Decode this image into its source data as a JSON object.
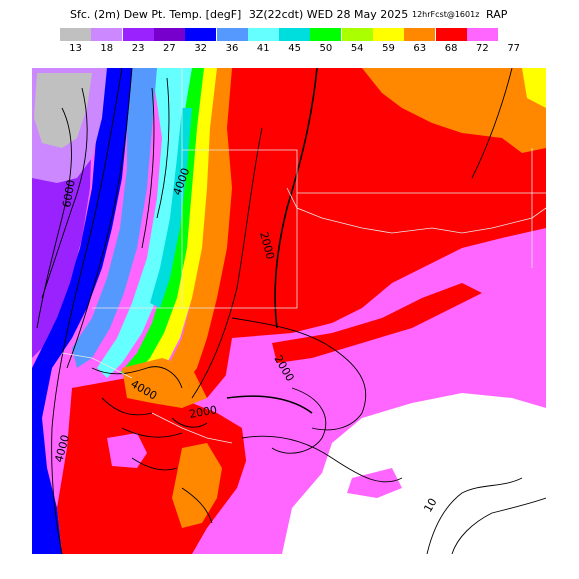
{
  "header": {
    "product": "Sfc. (2m) Dew Pt. Temp. [degF]",
    "valid": "3Z(22cdt) WED 28 May 2025",
    "forecast": "12hrFcst@1601z",
    "model": "RAP"
  },
  "legend": {
    "unit": "degF",
    "ticks": [
      "13",
      "18",
      "23",
      "27",
      "32",
      "36",
      "41",
      "45",
      "50",
      "54",
      "59",
      "63",
      "68",
      "72",
      "77"
    ],
    "colors": [
      "#c0c0c0",
      "#cc88ff",
      "#9922ff",
      "#7700cc",
      "#0000ff",
      "#5599ff",
      "#66ffff",
      "#00dddd",
      "#00ff00",
      "#aaff00",
      "#ffff00",
      "#ff8800",
      "#ff0000",
      "#ff66ff",
      "#ffffff"
    ]
  },
  "map": {
    "contour_labels": [
      "6000",
      "4000",
      "2000",
      "2000",
      "4000",
      "2000",
      "4000",
      "10"
    ],
    "field_colors": {
      "gray": "#c0c0c0",
      "lavender": "#cc88ff",
      "purple": "#9922ff",
      "blue": "#0000ff",
      "light_blue": "#5599ff",
      "cyan": "#66ffff",
      "teal": "#00dddd",
      "green": "#00ff00",
      "yellow_green": "#aaff00",
      "yellow": "#ffff00",
      "orange": "#ff8800",
      "red": "#ff0000",
      "pink": "#ff66ff",
      "white": "#ffffff"
    }
  }
}
